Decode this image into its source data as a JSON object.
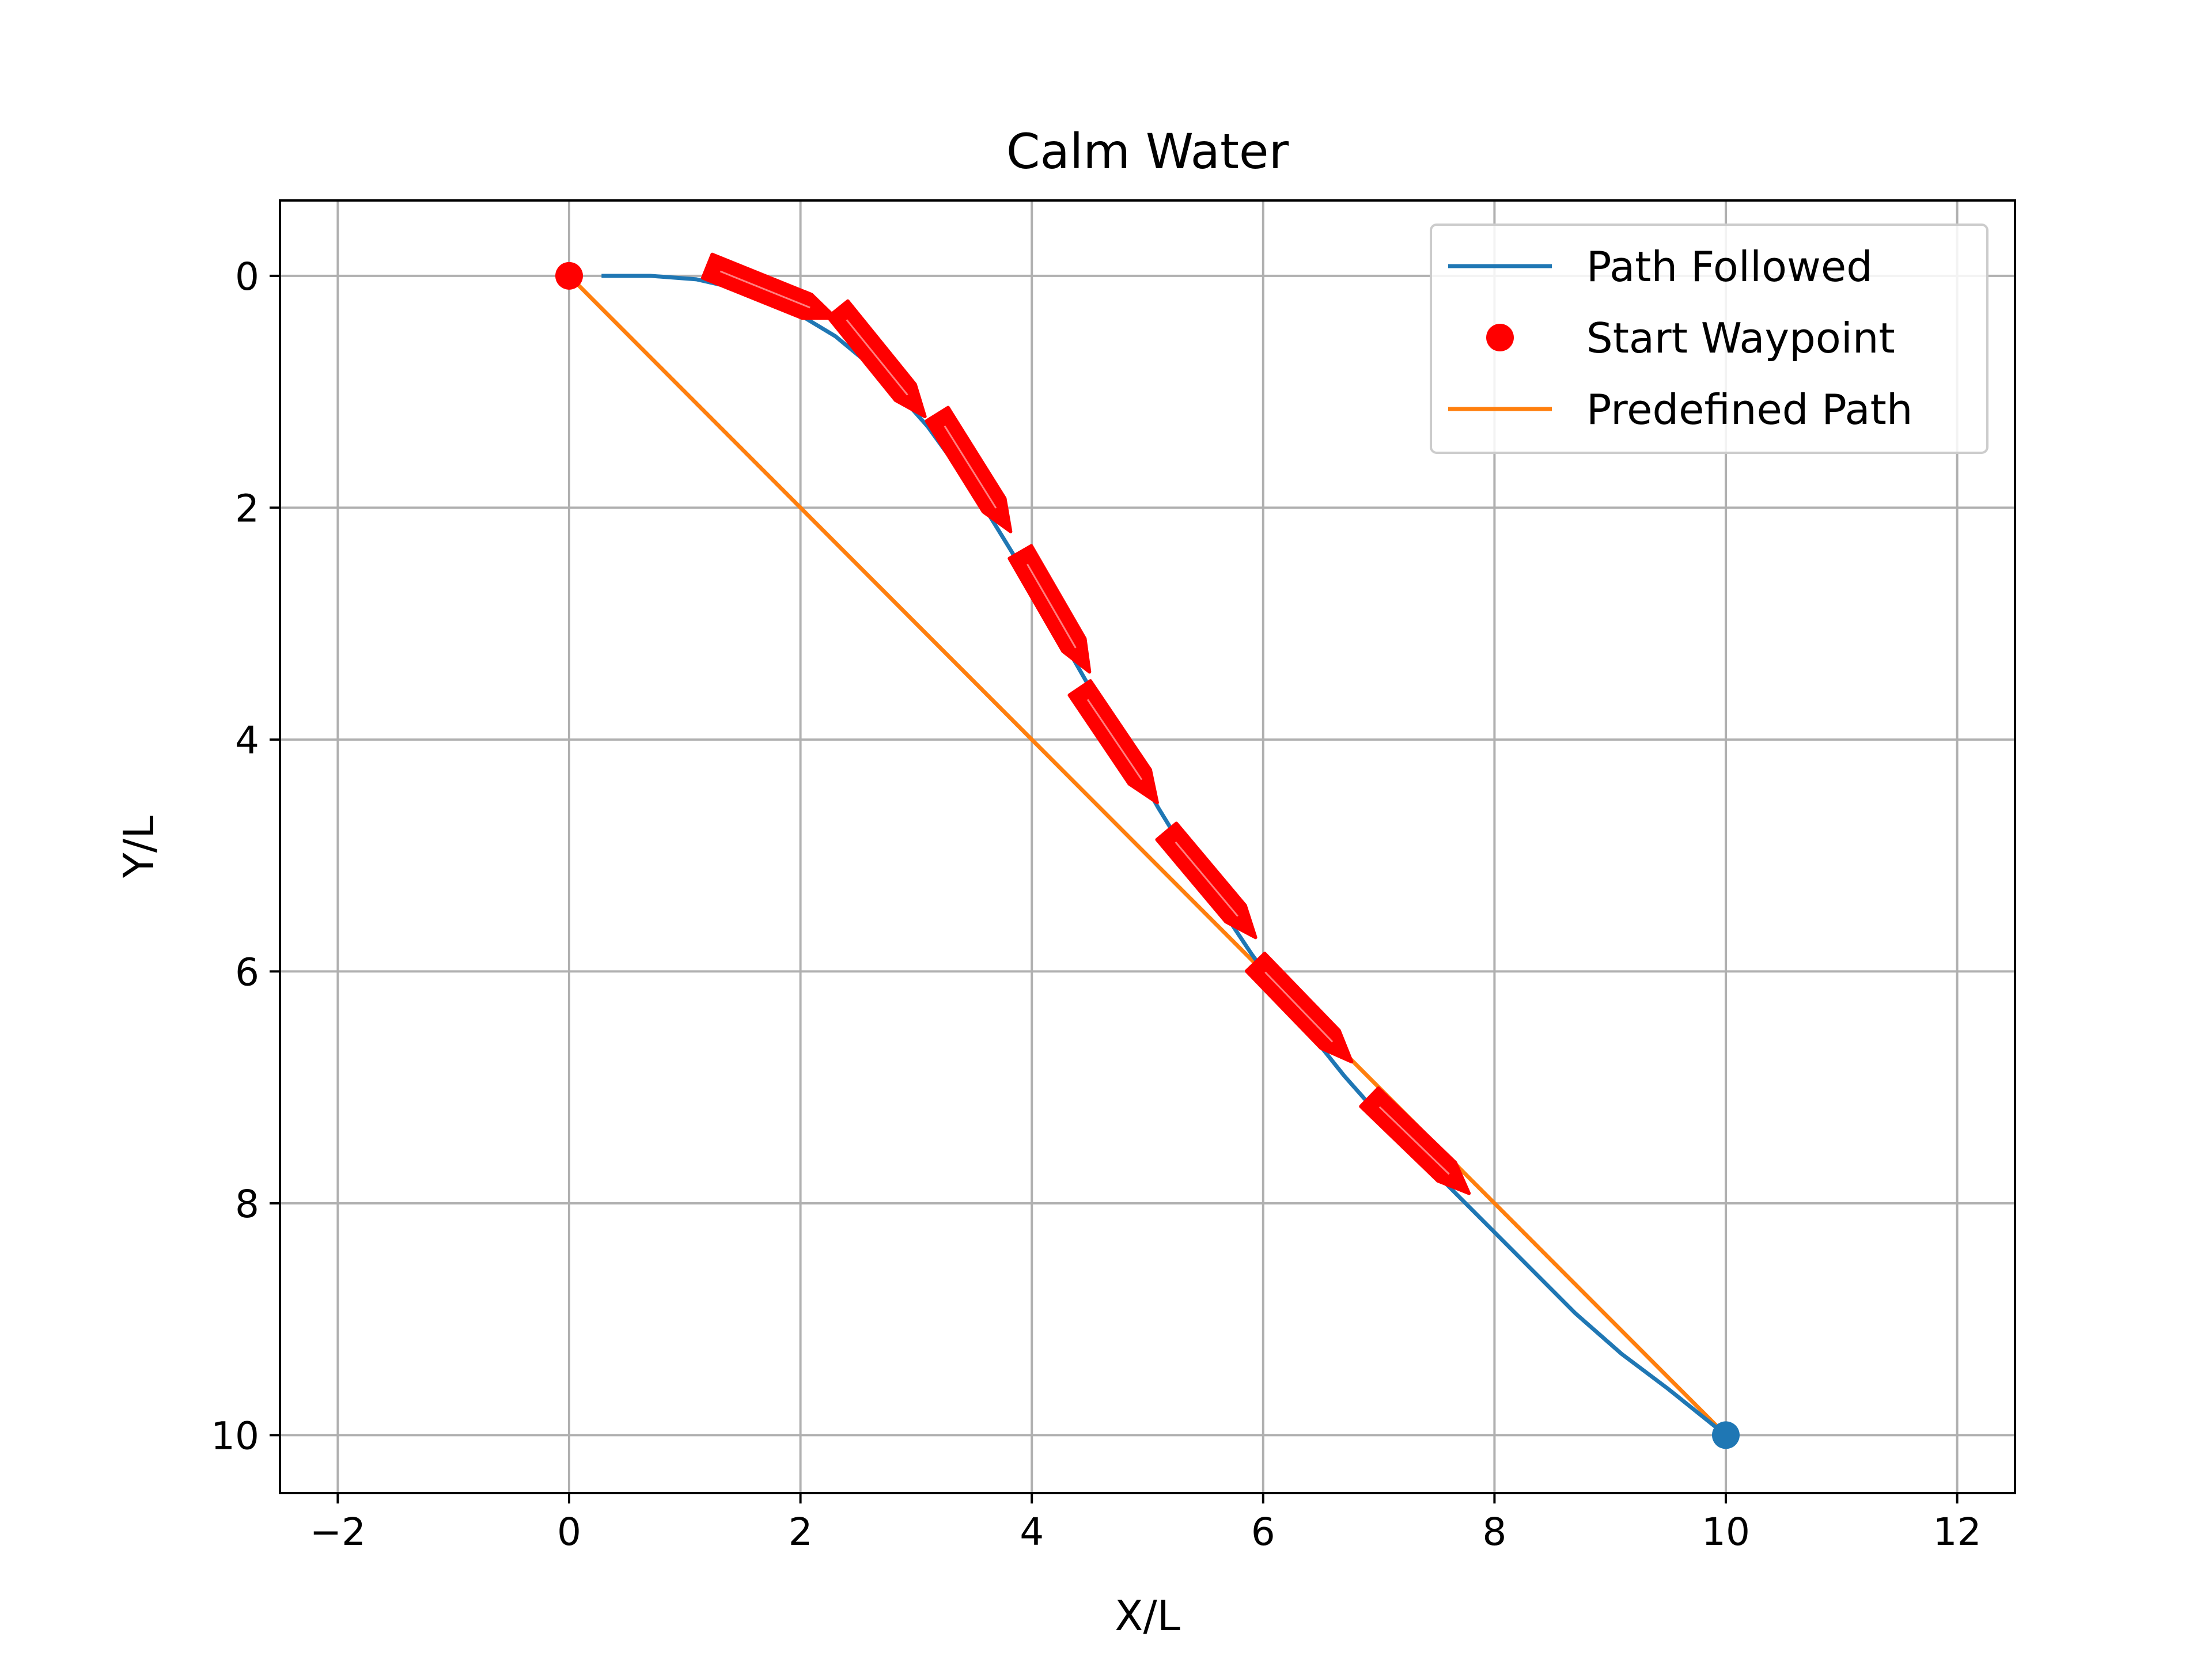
{
  "chart_data": {
    "type": "line",
    "title": "Calm Water",
    "xlabel": "X/L",
    "ylabel": "Y/L",
    "xlim": [
      -2.5,
      12.5
    ],
    "ylim": [
      -0.65,
      10.5
    ],
    "y_inverted": true,
    "grid": true,
    "legend_placement": "top-right",
    "x_ticks": [
      -2,
      0,
      2,
      4,
      6,
      8,
      10,
      12
    ],
    "x_tick_labels": [
      "−2",
      "0",
      "2",
      "4",
      "6",
      "8",
      "10",
      "12"
    ],
    "y_ticks": [
      0,
      2,
      4,
      6,
      8,
      10
    ],
    "y_tick_labels": [
      "0",
      "2",
      "4",
      "6",
      "8",
      "10"
    ],
    "legend": [
      "Path Followed",
      "Start Waypoint",
      "Predefined Path"
    ],
    "colors": {
      "path_followed": "#1f77b4",
      "start_waypoint": "#ff0000",
      "predefined_path": "#ff7f0e",
      "ship_markers": "#ff0000",
      "grid": "#b0b0b0"
    },
    "series": [
      {
        "name": "Path Followed",
        "x": [
          0.28,
          0.7,
          1.1,
          1.5,
          1.9,
          2.3,
          2.7,
          3.1,
          3.5,
          3.9,
          4.3,
          4.7,
          5.1,
          5.5,
          5.9,
          6.3,
          6.7,
          7.1,
          7.5,
          7.9,
          8.3,
          8.7,
          9.1,
          9.5,
          10.0
        ],
        "y": [
          0.0,
          0.0,
          0.03,
          0.12,
          0.28,
          0.52,
          0.85,
          1.3,
          1.85,
          2.5,
          3.2,
          3.9,
          4.6,
          5.25,
          5.85,
          6.4,
          6.9,
          7.35,
          7.75,
          8.15,
          8.55,
          8.95,
          9.3,
          9.6,
          10.0
        ]
      },
      {
        "name": "Start Waypoint",
        "x": [
          0
        ],
        "y": [
          0
        ]
      },
      {
        "name": "Predefined Path",
        "x": [
          0,
          10
        ],
        "y": [
          0,
          10
        ]
      }
    ],
    "end_waypoint": {
      "x": 10,
      "y": 10
    },
    "ship_markers": [
      {
        "x": 1.75,
        "y": 0.14,
        "heading_deg": 22
      },
      {
        "x": 2.7,
        "y": 0.75,
        "heading_deg": 51
      },
      {
        "x": 3.5,
        "y": 1.7,
        "heading_deg": 58
      },
      {
        "x": 4.2,
        "y": 2.9,
        "heading_deg": 60
      },
      {
        "x": 4.75,
        "y": 4.05,
        "heading_deg": 56
      },
      {
        "x": 5.55,
        "y": 5.25,
        "heading_deg": 50
      },
      {
        "x": 6.35,
        "y": 6.35,
        "heading_deg": 46
      },
      {
        "x": 7.35,
        "y": 7.5,
        "heading_deg": 44
      }
    ]
  }
}
